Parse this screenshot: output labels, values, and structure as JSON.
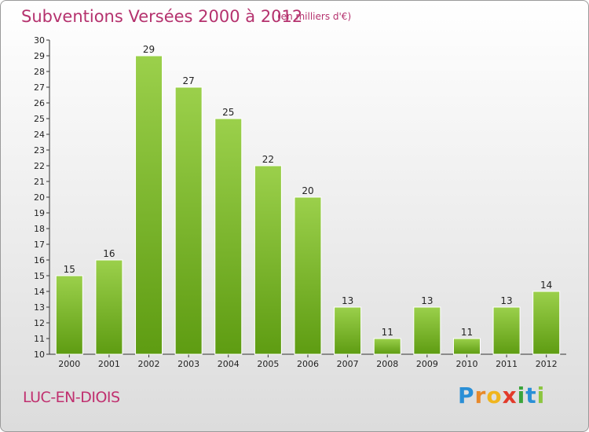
{
  "chart_data": {
    "type": "bar",
    "title": "Subventions Versées 2000 à 2012",
    "subtitle": "(en milliers d'€)",
    "categories": [
      "2000",
      "2001",
      "2002",
      "2003",
      "2004",
      "2005",
      "2006",
      "2007",
      "2008",
      "2009",
      "2010",
      "2011",
      "2012"
    ],
    "values": [
      15,
      16,
      29,
      27,
      25,
      22,
      20,
      13,
      11,
      13,
      11,
      13,
      14
    ],
    "ylim": [
      10,
      30
    ],
    "yticks": [
      10,
      11,
      12,
      13,
      14,
      15,
      16,
      17,
      18,
      19,
      20,
      21,
      22,
      23,
      24,
      25,
      26,
      27,
      28,
      29,
      30
    ],
    "grid": false,
    "bar_color": "#7dbb2e"
  },
  "location": "LUC-EN-DIOIS",
  "brand": {
    "letters": [
      {
        "char": "P",
        "color": "#2a8fd6"
      },
      {
        "char": "r",
        "color": "#e8892a"
      },
      {
        "char": "o",
        "color": "#f0b51e"
      },
      {
        "char": "x",
        "color": "#e23a2a"
      },
      {
        "char": "i",
        "color": "#3aa43a"
      },
      {
        "char": "t",
        "color": "#2a8fd6"
      },
      {
        "char": "i",
        "color": "#8cc63f"
      }
    ]
  }
}
